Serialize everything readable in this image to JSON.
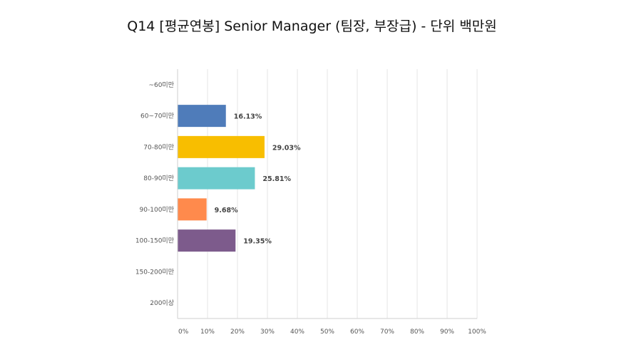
{
  "chart_data": {
    "type": "bar",
    "orientation": "horizontal",
    "title": "Q14 [평균연봉]  Senior Manager (팀장, 부장급) - 단위 백만원",
    "categories": [
      "~60미만",
      "60~70미만",
      "70-80미만",
      "80-90미만",
      "90-100미만",
      "100-150미만",
      "150-200미만",
      "200이상"
    ],
    "values": [
      0,
      16.13,
      29.03,
      25.81,
      9.68,
      19.35,
      0,
      0
    ],
    "value_labels": [
      "",
      "16.13%",
      "29.03%",
      "25.81%",
      "9.68%",
      "19.35%",
      "",
      ""
    ],
    "colors": [
      "#5a5a5a",
      "#4f7cba",
      "#f8be00",
      "#6ccbcd",
      "#ff8a4c",
      "#7d5b8c",
      "#5a5a5a",
      "#5a5a5a"
    ],
    "xlim": [
      0,
      100
    ],
    "x_ticks": [
      "0%",
      "10%",
      "20%",
      "30%",
      "40%",
      "50%",
      "60%",
      "70%",
      "80%",
      "90%",
      "100%"
    ],
    "grid": true,
    "legend": "none"
  }
}
